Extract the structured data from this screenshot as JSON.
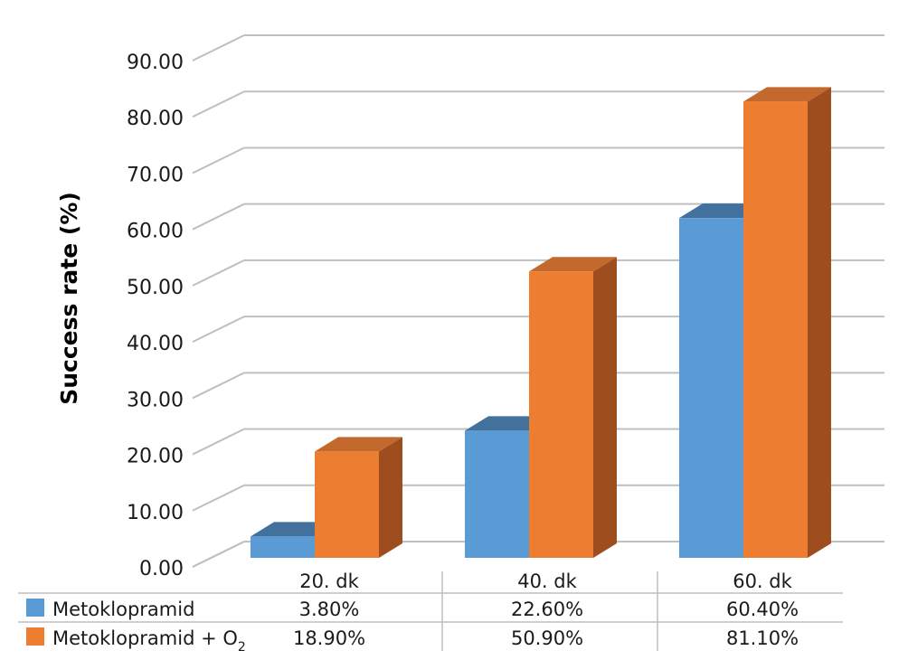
{
  "chart_data": {
    "type": "bar",
    "style": "3d-clustered-column",
    "ylabel": "Success rate (%)",
    "yticks": [
      "0.00",
      "10.00",
      "20.00",
      "30.00",
      "40.00",
      "50.00",
      "60.00",
      "70.00",
      "80.00",
      "90.00"
    ],
    "ylim": [
      0,
      90
    ],
    "grid": true,
    "categories": [
      "20. dk",
      "40. dk",
      "60. dk"
    ],
    "series": [
      {
        "name": "Metoklopramid",
        "name_base": "Metoklopramid",
        "name_sub": "",
        "values": [
          3.8,
          22.6,
          60.4
        ],
        "labels": [
          "3.80%",
          "22.60%",
          "60.40%"
        ],
        "color": "#5b9bd5",
        "top": "#41719c",
        "side": "#41719c"
      },
      {
        "name": "Metoklopramid + O2",
        "name_base": "Metoklopramid + O",
        "name_sub": "2",
        "values": [
          18.9,
          50.9,
          81.1
        ],
        "labels": [
          "18.90%",
          "50.90%",
          "81.10%"
        ],
        "color": "#ed7d31",
        "top": "#c4692d",
        "side": "#9e4d1e"
      }
    ],
    "legend": "data-table-below"
  }
}
